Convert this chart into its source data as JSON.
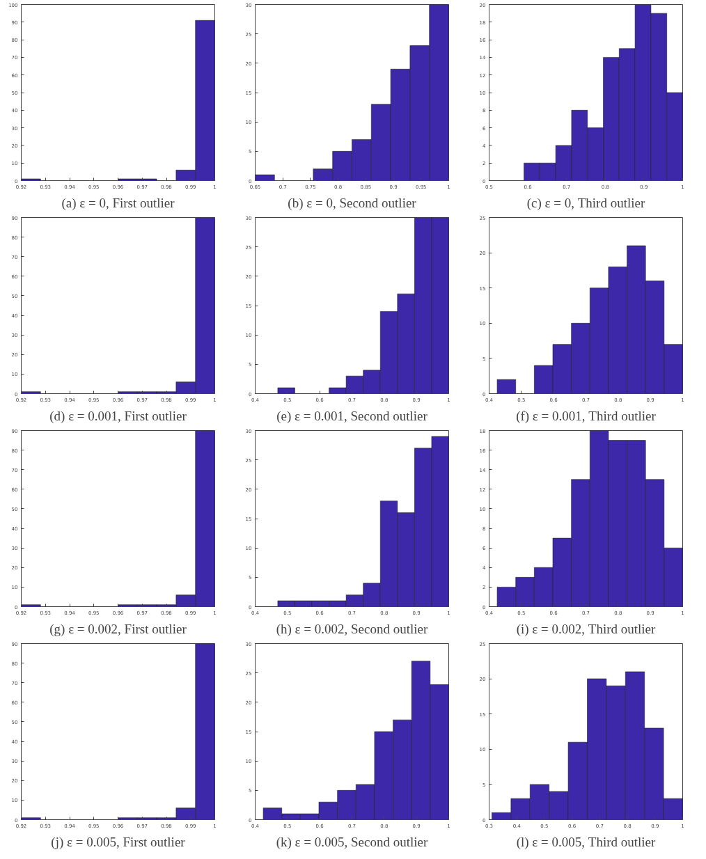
{
  "chart_data": [
    {
      "type": "histogram",
      "title": "(a) ε = 0, First outlier",
      "color": "#3c28a8",
      "bins": [
        0.92,
        0.928,
        0.936,
        0.944,
        0.952,
        0.96,
        0.968,
        0.976,
        0.984,
        0.992,
        1
      ],
      "values": [
        1,
        0,
        0,
        0,
        0,
        1,
        1,
        0,
        6,
        91
      ],
      "xlim": [
        0.92,
        1
      ],
      "xticks": [
        0.92,
        0.93,
        0.94,
        0.95,
        0.96,
        0.97,
        0.98,
        0.99,
        1
      ],
      "ylim": [
        0,
        100
      ],
      "yticks": [
        0,
        10,
        20,
        30,
        40,
        50,
        60,
        70,
        80,
        90,
        100
      ],
      "grid": false
    },
    {
      "type": "histogram",
      "title": "(b) ε = 0, Second outlier",
      "color": "#3c28a8",
      "bins": [
        0.65,
        0.685,
        0.72,
        0.755,
        0.79,
        0.825,
        0.86,
        0.895,
        0.93,
        0.965,
        1
      ],
      "values": [
        1,
        0,
        0,
        2,
        5,
        7,
        13,
        19,
        23,
        30
      ],
      "xlim": [
        0.65,
        1
      ],
      "xticks": [
        0.65,
        0.7,
        0.75,
        0.8,
        0.85,
        0.9,
        0.95,
        1
      ],
      "ylim": [
        0,
        30
      ],
      "yticks": [
        0,
        5,
        10,
        15,
        20,
        25,
        30
      ],
      "grid": false
    },
    {
      "type": "histogram",
      "title": "(c) ε = 0, Third outlier",
      "color": "#3c28a8",
      "bins": [
        0.59,
        0.631,
        0.672,
        0.713,
        0.754,
        0.795,
        0.836,
        0.877,
        0.918,
        0.959,
        1
      ],
      "values": [
        2,
        2,
        4,
        8,
        6,
        14,
        15,
        20,
        19,
        10
      ],
      "xlim": [
        0.5,
        1
      ],
      "xticks": [
        0.5,
        0.6,
        0.7,
        0.8,
        0.9,
        1
      ],
      "ylim": [
        0,
        20
      ],
      "yticks": [
        0,
        2,
        4,
        6,
        8,
        10,
        12,
        14,
        16,
        18,
        20
      ],
      "grid": false
    },
    {
      "type": "histogram",
      "title": "(d) ε = 0.001, First outlier",
      "color": "#3c28a8",
      "bins": [
        0.92,
        0.928,
        0.936,
        0.944,
        0.952,
        0.96,
        0.968,
        0.976,
        0.984,
        0.992,
        1
      ],
      "values": [
        1,
        0,
        0,
        0,
        0,
        1,
        1,
        1,
        6,
        90
      ],
      "xlim": [
        0.92,
        1
      ],
      "xticks": [
        0.92,
        0.93,
        0.94,
        0.95,
        0.96,
        0.97,
        0.98,
        0.99,
        1
      ],
      "ylim": [
        0,
        90
      ],
      "yticks": [
        0,
        10,
        20,
        30,
        40,
        50,
        60,
        70,
        80,
        90
      ],
      "grid": false
    },
    {
      "type": "histogram",
      "title": "(e) ε = 0.001, Second outlier",
      "color": "#3c28a8",
      "bins": [
        0.47,
        0.523,
        0.576,
        0.629,
        0.682,
        0.735,
        0.788,
        0.841,
        0.894,
        0.947,
        1
      ],
      "values": [
        1,
        0,
        0,
        1,
        3,
        4,
        14,
        17,
        30,
        30
      ],
      "xlim": [
        0.4,
        1
      ],
      "xticks": [
        0.4,
        0.5,
        0.6,
        0.7,
        0.8,
        0.9,
        1
      ],
      "ylim": [
        0,
        30
      ],
      "yticks": [
        0,
        5,
        10,
        15,
        20,
        25,
        30
      ],
      "grid": false
    },
    {
      "type": "histogram",
      "title": "(f) ε = 0.001, Third outlier",
      "color": "#3c28a8",
      "bins": [
        0.425,
        0.4825,
        0.54,
        0.5975,
        0.655,
        0.7125,
        0.77,
        0.8275,
        0.885,
        0.9425,
        1
      ],
      "values": [
        2,
        0,
        4,
        7,
        10,
        15,
        18,
        21,
        16,
        7
      ],
      "xlim": [
        0.4,
        1
      ],
      "xticks": [
        0.4,
        0.5,
        0.6,
        0.7,
        0.8,
        0.9,
        1
      ],
      "ylim": [
        0,
        25
      ],
      "yticks": [
        0,
        5,
        10,
        15,
        20,
        25
      ],
      "grid": false
    },
    {
      "type": "histogram",
      "title": "(g) ε = 0.002, First outlier",
      "color": "#3c28a8",
      "bins": [
        0.92,
        0.928,
        0.936,
        0.944,
        0.952,
        0.96,
        0.968,
        0.976,
        0.984,
        0.992,
        1
      ],
      "values": [
        1,
        0,
        0,
        0,
        0,
        1,
        1,
        1,
        6,
        90
      ],
      "xlim": [
        0.92,
        1
      ],
      "xticks": [
        0.92,
        0.93,
        0.94,
        0.95,
        0.96,
        0.97,
        0.98,
        0.99,
        1
      ],
      "ylim": [
        0,
        90
      ],
      "yticks": [
        0,
        10,
        20,
        30,
        40,
        50,
        60,
        70,
        80,
        90
      ],
      "grid": false
    },
    {
      "type": "histogram",
      "title": "(h) ε = 0.002, Second outlier",
      "color": "#3c28a8",
      "bins": [
        0.47,
        0.523,
        0.576,
        0.629,
        0.682,
        0.735,
        0.788,
        0.841,
        0.894,
        0.947,
        1
      ],
      "values": [
        1,
        1,
        1,
        1,
        2,
        4,
        18,
        16,
        27,
        29
      ],
      "xlim": [
        0.4,
        1
      ],
      "xticks": [
        0.4,
        0.5,
        0.6,
        0.7,
        0.8,
        0.9,
        1
      ],
      "ylim": [
        0,
        30
      ],
      "yticks": [
        0,
        5,
        10,
        15,
        20,
        25,
        30
      ],
      "grid": false
    },
    {
      "type": "histogram",
      "title": "(i) ε = 0.002, Third outlier",
      "color": "#3c28a8",
      "bins": [
        0.425,
        0.4825,
        0.54,
        0.5975,
        0.655,
        0.7125,
        0.77,
        0.8275,
        0.885,
        0.9425,
        1
      ],
      "values": [
        2,
        3,
        4,
        7,
        13,
        18,
        17,
        17,
        13,
        6
      ],
      "xlim": [
        0.4,
        1
      ],
      "xticks": [
        0.4,
        0.5,
        0.6,
        0.7,
        0.8,
        0.9,
        1
      ],
      "ylim": [
        0,
        18
      ],
      "yticks": [
        0,
        2,
        4,
        6,
        8,
        10,
        12,
        14,
        16,
        18
      ],
      "grid": false
    },
    {
      "type": "histogram",
      "title": "(j) ε = 0.005, First outlier",
      "color": "#3c28a8",
      "bins": [
        0.92,
        0.928,
        0.936,
        0.944,
        0.952,
        0.96,
        0.968,
        0.976,
        0.984,
        0.992,
        1
      ],
      "values": [
        1,
        0,
        0,
        0,
        0,
        1,
        1,
        1,
        6,
        90
      ],
      "xlim": [
        0.92,
        1
      ],
      "xticks": [
        0.92,
        0.93,
        0.94,
        0.95,
        0.96,
        0.97,
        0.98,
        0.99,
        1
      ],
      "ylim": [
        0,
        90
      ],
      "yticks": [
        0,
        10,
        20,
        30,
        40,
        50,
        60,
        70,
        80,
        90
      ],
      "grid": false
    },
    {
      "type": "histogram",
      "title": "(k) ε = 0.005, Second outlier",
      "color": "#3c28a8",
      "bins": [
        0.425,
        0.4825,
        0.54,
        0.5975,
        0.655,
        0.7125,
        0.77,
        0.8275,
        0.885,
        0.9425,
        1
      ],
      "values": [
        2,
        1,
        1,
        3,
        5,
        6,
        15,
        17,
        27,
        23
      ],
      "xlim": [
        0.4,
        1
      ],
      "xticks": [
        0.4,
        0.5,
        0.6,
        0.7,
        0.8,
        0.9,
        1
      ],
      "ylim": [
        0,
        30
      ],
      "yticks": [
        0,
        5,
        10,
        15,
        20,
        25,
        30
      ],
      "grid": false
    },
    {
      "type": "histogram",
      "title": "(l) ε = 0.005, Third outlier",
      "color": "#3c28a8",
      "bins": [
        0.31,
        0.379,
        0.448,
        0.517,
        0.586,
        0.655,
        0.724,
        0.793,
        0.862,
        0.931,
        1
      ],
      "values": [
        1,
        3,
        5,
        4,
        11,
        20,
        19,
        21,
        13,
        3
      ],
      "xlim": [
        0.3,
        1
      ],
      "xticks": [
        0.3,
        0.4,
        0.5,
        0.6,
        0.7,
        0.8,
        0.9,
        1
      ],
      "ylim": [
        0,
        25
      ],
      "yticks": [
        0,
        5,
        10,
        15,
        20,
        25
      ],
      "grid": false
    }
  ]
}
